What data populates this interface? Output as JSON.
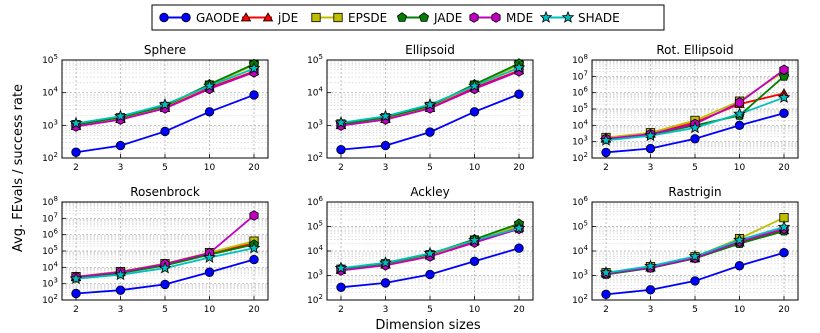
{
  "figure": {
    "ylabel": "Avg. FEvals / success rate",
    "xlabel": "Dimension sizes"
  },
  "legend": {
    "placement": "top-center",
    "entries": [
      {
        "name": "GAODE",
        "color": "#0000ff",
        "marker": "circle"
      },
      {
        "name": "jDE",
        "color": "#ff0000",
        "marker": "triangle"
      },
      {
        "name": "EPSDE",
        "color": "#bfbf00",
        "marker": "square"
      },
      {
        "name": "JADE",
        "color": "#007f00",
        "marker": "pentagon"
      },
      {
        "name": "MDE",
        "color": "#bf00bf",
        "marker": "hexagon"
      },
      {
        "name": "SHADE",
        "color": "#00bfbf",
        "marker": "star"
      }
    ]
  },
  "chart_data": [
    {
      "type": "line",
      "title": "Sphere",
      "yscale": "log",
      "ylim": [
        100,
        100000
      ],
      "yticks": [
        {
          "v": 100,
          "base": "10",
          "exp": "2"
        },
        {
          "v": 1000,
          "base": "10",
          "exp": "3"
        },
        {
          "v": 10000,
          "base": "10",
          "exp": "4"
        },
        {
          "v": 100000,
          "base": "10",
          "exp": "5"
        }
      ],
      "categories": [
        "2",
        "3",
        "5",
        "10",
        "20"
      ],
      "grid": true,
      "series": [
        {
          "name": "GAODE",
          "values": [
            150,
            240,
            650,
            2600,
            8500
          ]
        },
        {
          "name": "jDE",
          "values": [
            950,
            1550,
            3400,
            14000,
            45000
          ]
        },
        {
          "name": "EPSDE",
          "values": [
            1050,
            1700,
            3800,
            17000,
            70000
          ]
        },
        {
          "name": "JADE",
          "values": [
            1050,
            1750,
            3900,
            18000,
            75000
          ]
        },
        {
          "name": "MDE",
          "values": [
            920,
            1500,
            3300,
            13000,
            42000
          ]
        },
        {
          "name": "SHADE",
          "values": [
            1150,
            1900,
            4300,
            16000,
            55000
          ]
        }
      ]
    },
    {
      "type": "line",
      "title": "Ellipsoid",
      "yscale": "log",
      "ylim": [
        100,
        100000
      ],
      "yticks": [
        {
          "v": 100,
          "base": "10",
          "exp": "2"
        },
        {
          "v": 1000,
          "base": "10",
          "exp": "3"
        },
        {
          "v": 10000,
          "base": "10",
          "exp": "4"
        },
        {
          "v": 100000,
          "base": "10",
          "exp": "5"
        }
      ],
      "categories": [
        "2",
        "3",
        "5",
        "10",
        "20"
      ],
      "grid": true,
      "series": [
        {
          "name": "GAODE",
          "values": [
            180,
            240,
            620,
            2600,
            9000
          ]
        },
        {
          "name": "jDE",
          "values": [
            1000,
            1550,
            3400,
            14000,
            48000
          ]
        },
        {
          "name": "EPSDE",
          "values": [
            1100,
            1700,
            3800,
            17000,
            70000
          ]
        },
        {
          "name": "JADE",
          "values": [
            1100,
            1750,
            3900,
            18000,
            78000
          ]
        },
        {
          "name": "MDE",
          "values": [
            980,
            1500,
            3300,
            13000,
            45000
          ]
        },
        {
          "name": "SHADE",
          "values": [
            1200,
            1900,
            4300,
            16000,
            58000
          ]
        }
      ]
    },
    {
      "type": "line",
      "title": "Rot. Ellipsoid",
      "yscale": "log",
      "ylim": [
        100,
        100000000
      ],
      "yticks": [
        {
          "v": 100,
          "base": "10",
          "exp": "2"
        },
        {
          "v": 1000,
          "base": "10",
          "exp": "3"
        },
        {
          "v": 10000,
          "base": "10",
          "exp": "4"
        },
        {
          "v": 100000,
          "base": "10",
          "exp": "5"
        },
        {
          "v": 1000000,
          "base": "10",
          "exp": "6"
        },
        {
          "v": 10000000,
          "base": "10",
          "exp": "7"
        },
        {
          "v": 100000000,
          "base": "10",
          "exp": "8"
        }
      ],
      "categories": [
        "2",
        "3",
        "5",
        "10",
        "20"
      ],
      "grid": true,
      "series": [
        {
          "name": "GAODE",
          "values": [
            220,
            380,
            1500,
            10000,
            55000
          ]
        },
        {
          "name": "jDE",
          "values": [
            1500,
            3000,
            15000,
            200000,
            900000
          ]
        },
        {
          "name": "EPSDE",
          "values": [
            1800,
            3500,
            20000,
            300000,
            20000000
          ]
        },
        {
          "name": "JADE",
          "values": [
            1400,
            2700,
            10000,
            40000,
            10000000
          ]
        },
        {
          "name": "MDE",
          "values": [
            1500,
            2900,
            12000,
            250000,
            25000000
          ]
        },
        {
          "name": "SHADE",
          "values": [
            1200,
            2300,
            7000,
            50000,
            500000
          ]
        }
      ]
    },
    {
      "type": "line",
      "title": "Rosenbrock",
      "yscale": "log",
      "ylim": [
        100,
        100000000
      ],
      "yticks": [
        {
          "v": 100,
          "base": "10",
          "exp": "2"
        },
        {
          "v": 1000,
          "base": "10",
          "exp": "3"
        },
        {
          "v": 10000,
          "base": "10",
          "exp": "4"
        },
        {
          "v": 100000,
          "base": "10",
          "exp": "5"
        },
        {
          "v": 1000000,
          "base": "10",
          "exp": "6"
        },
        {
          "v": 10000000,
          "base": "10",
          "exp": "7"
        },
        {
          "v": 100000000,
          "base": "10",
          "exp": "8"
        }
      ],
      "categories": [
        "2",
        "3",
        "5",
        "10",
        "20"
      ],
      "grid": true,
      "series": [
        {
          "name": "GAODE",
          "values": [
            250,
            400,
            900,
            5000,
            30000
          ]
        },
        {
          "name": "jDE",
          "values": [
            2500,
            5000,
            15000,
            70000,
            300000
          ]
        },
        {
          "name": "EPSDE",
          "values": [
            2700,
            5500,
            17000,
            80000,
            400000
          ]
        },
        {
          "name": "JADE",
          "values": [
            2200,
            4500,
            13000,
            60000,
            250000
          ]
        },
        {
          "name": "MDE",
          "values": [
            2600,
            5200,
            16000,
            75000,
            15000000
          ]
        },
        {
          "name": "SHADE",
          "values": [
            2000,
            3500,
            9000,
            40000,
            150000
          ]
        }
      ]
    },
    {
      "type": "line",
      "title": "Ackley",
      "yscale": "log",
      "ylim": [
        100,
        1000000
      ],
      "yticks": [
        {
          "v": 100,
          "base": "10",
          "exp": "2"
        },
        {
          "v": 1000,
          "base": "10",
          "exp": "3"
        },
        {
          "v": 10000,
          "base": "10",
          "exp": "4"
        },
        {
          "v": 100000,
          "base": "10",
          "exp": "5"
        },
        {
          "v": 1000000,
          "base": "10",
          "exp": "6"
        }
      ],
      "categories": [
        "2",
        "3",
        "5",
        "10",
        "20"
      ],
      "grid": true,
      "series": [
        {
          "name": "GAODE",
          "values": [
            330,
            500,
            1100,
            3800,
            13000
          ]
        },
        {
          "name": "jDE",
          "values": [
            1700,
            2800,
            6500,
            25000,
            90000
          ]
        },
        {
          "name": "EPSDE",
          "values": [
            1800,
            3000,
            7000,
            28000,
            110000
          ]
        },
        {
          "name": "JADE",
          "values": [
            1900,
            3100,
            7500,
            30000,
            130000
          ]
        },
        {
          "name": "MDE",
          "values": [
            1600,
            2600,
            6000,
            22000,
            80000
          ]
        },
        {
          "name": "SHADE",
          "values": [
            2000,
            3300,
            8000,
            27000,
            85000
          ]
        }
      ]
    },
    {
      "type": "line",
      "title": "Rastrigin",
      "yscale": "log",
      "ylim": [
        100,
        1000000
      ],
      "yticks": [
        {
          "v": 100,
          "base": "10",
          "exp": "2"
        },
        {
          "v": 1000,
          "base": "10",
          "exp": "3"
        },
        {
          "v": 10000,
          "base": "10",
          "exp": "4"
        },
        {
          "v": 100000,
          "base": "10",
          "exp": "5"
        },
        {
          "v": 1000000,
          "base": "10",
          "exp": "6"
        }
      ],
      "categories": [
        "2",
        "3",
        "5",
        "10",
        "20"
      ],
      "grid": true,
      "series": [
        {
          "name": "GAODE",
          "values": [
            170,
            260,
            600,
            2500,
            8500
          ]
        },
        {
          "name": "jDE",
          "values": [
            1200,
            2100,
            5000,
            22000,
            70000
          ]
        },
        {
          "name": "EPSDE",
          "values": [
            1300,
            2300,
            5800,
            32000,
            230000
          ]
        },
        {
          "name": "JADE",
          "values": [
            1100,
            2000,
            5000,
            20000,
            65000
          ]
        },
        {
          "name": "MDE",
          "values": [
            1200,
            2100,
            5200,
            24000,
            80000
          ]
        },
        {
          "name": "SHADE",
          "values": [
            1300,
            2400,
            6000,
            28000,
            95000
          ]
        }
      ]
    }
  ]
}
